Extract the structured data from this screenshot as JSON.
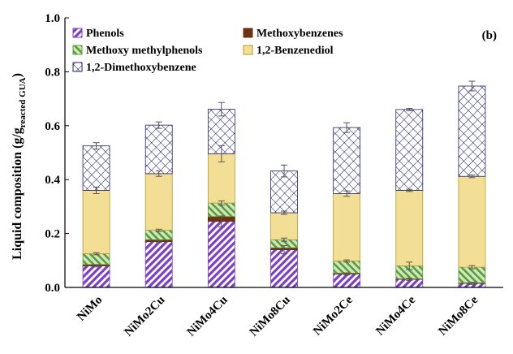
{
  "chart_data": {
    "type": "bar",
    "stacked": true,
    "panel_label": "(b)",
    "ylabel": "Liquid composition (g/g",
    "ylabel_sub": "reacted GUA",
    "ylabel_close": ")",
    "xlabel": "",
    "ylim": [
      0,
      1.0
    ],
    "yticks": [
      "0.0",
      "0.2",
      "0.4",
      "0.6",
      "0.8",
      "1.0"
    ],
    "grid": false,
    "legend_position": "top-left",
    "categories": [
      "NiMo",
      "NiMo2Cu",
      "NiMo4Cu",
      "NiMo8Cu",
      "NiMo2Ce",
      "NiMo4Ce",
      "NiMo8Ce"
    ],
    "series": [
      {
        "name": "Phenols",
        "values": [
          0.08,
          0.17,
          0.245,
          0.14,
          0.05,
          0.03,
          0.015
        ],
        "color": "#7b3fc4",
        "pattern": "diagonal-hatch"
      },
      {
        "name": "Methoxybenzenes",
        "values": [
          0.005,
          0.007,
          0.018,
          0.007,
          0.003,
          0.002,
          0.002
        ],
        "color": "#6b3410",
        "pattern": "solid"
      },
      {
        "name": "Methoxy methylphenols",
        "values": [
          0.04,
          0.035,
          0.05,
          0.03,
          0.045,
          0.048,
          0.058
        ],
        "color": "#5c9c3a",
        "pattern": "reverse-hatch"
      },
      {
        "name": "1,2-Benzenediol",
        "values": [
          0.235,
          0.21,
          0.183,
          0.1,
          0.25,
          0.28,
          0.337
        ],
        "color": "#f3de96",
        "pattern": "solid"
      },
      {
        "name": "1,2-Dimethoxybenzene",
        "values": [
          0.165,
          0.18,
          0.165,
          0.155,
          0.245,
          0.3,
          0.335
        ],
        "color": "#23236e",
        "pattern": "crosshatch"
      }
    ],
    "error_bars": {
      "1,2-Benzenediol": [
        0.012,
        0.01,
        0.03,
        0.006,
        0.01,
        0.004,
        0.005
      ],
      "1,2-Dimethoxybenzene": [
        0.012,
        0.012,
        0.025,
        0.022,
        0.018,
        0.004,
        0.018
      ],
      "Methoxy methylphenols": [
        0.004,
        0.004,
        0.008,
        0.006,
        0.004,
        0.014,
        0.006
      ],
      "Phenols": [
        0.004,
        0.004,
        0.02,
        0.015,
        0.004,
        0.004,
        0.004
      ]
    }
  }
}
